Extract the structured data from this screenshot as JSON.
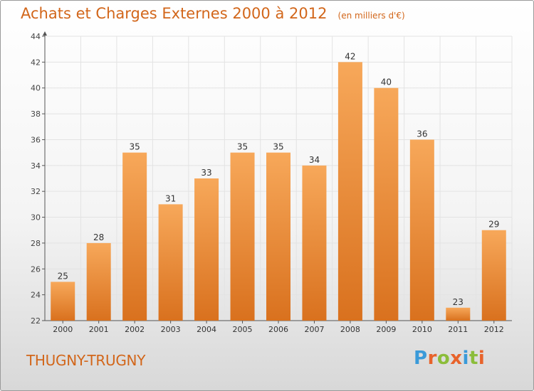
{
  "header": {
    "title": "Achats et Charges Externes 2000 à 2012",
    "unit_note": "(en milliers d'€)"
  },
  "footer": {
    "place_name": "THUGNY-TRUGNY",
    "brand_logo": "Proxiti"
  },
  "colors": {
    "accent": "#d2661a",
    "bar_top": "#f7a85a",
    "bar_bottom": "#d9711e",
    "logo": [
      "#3a9ad9",
      "#e8632b",
      "#8bbd3a",
      "#e8632b",
      "#3a9ad9",
      "#8bbd3a",
      "#e8632b"
    ]
  },
  "chart_data": {
    "type": "bar",
    "categories": [
      "2000",
      "2001",
      "2002",
      "2003",
      "2004",
      "2005",
      "2006",
      "2007",
      "2008",
      "2009",
      "2010",
      "2011",
      "2012"
    ],
    "values": [
      25,
      28,
      35,
      31,
      33,
      35,
      35,
      34,
      42,
      40,
      36,
      23,
      29
    ],
    "title": "Achats et Charges Externes 2000 à 2012",
    "xlabel": "",
    "ylabel": "",
    "ylim": [
      22,
      44
    ],
    "yticks": [
      22,
      24,
      26,
      28,
      30,
      32,
      34,
      36,
      38,
      40,
      42,
      44
    ],
    "grid": true,
    "data_labels": true
  }
}
